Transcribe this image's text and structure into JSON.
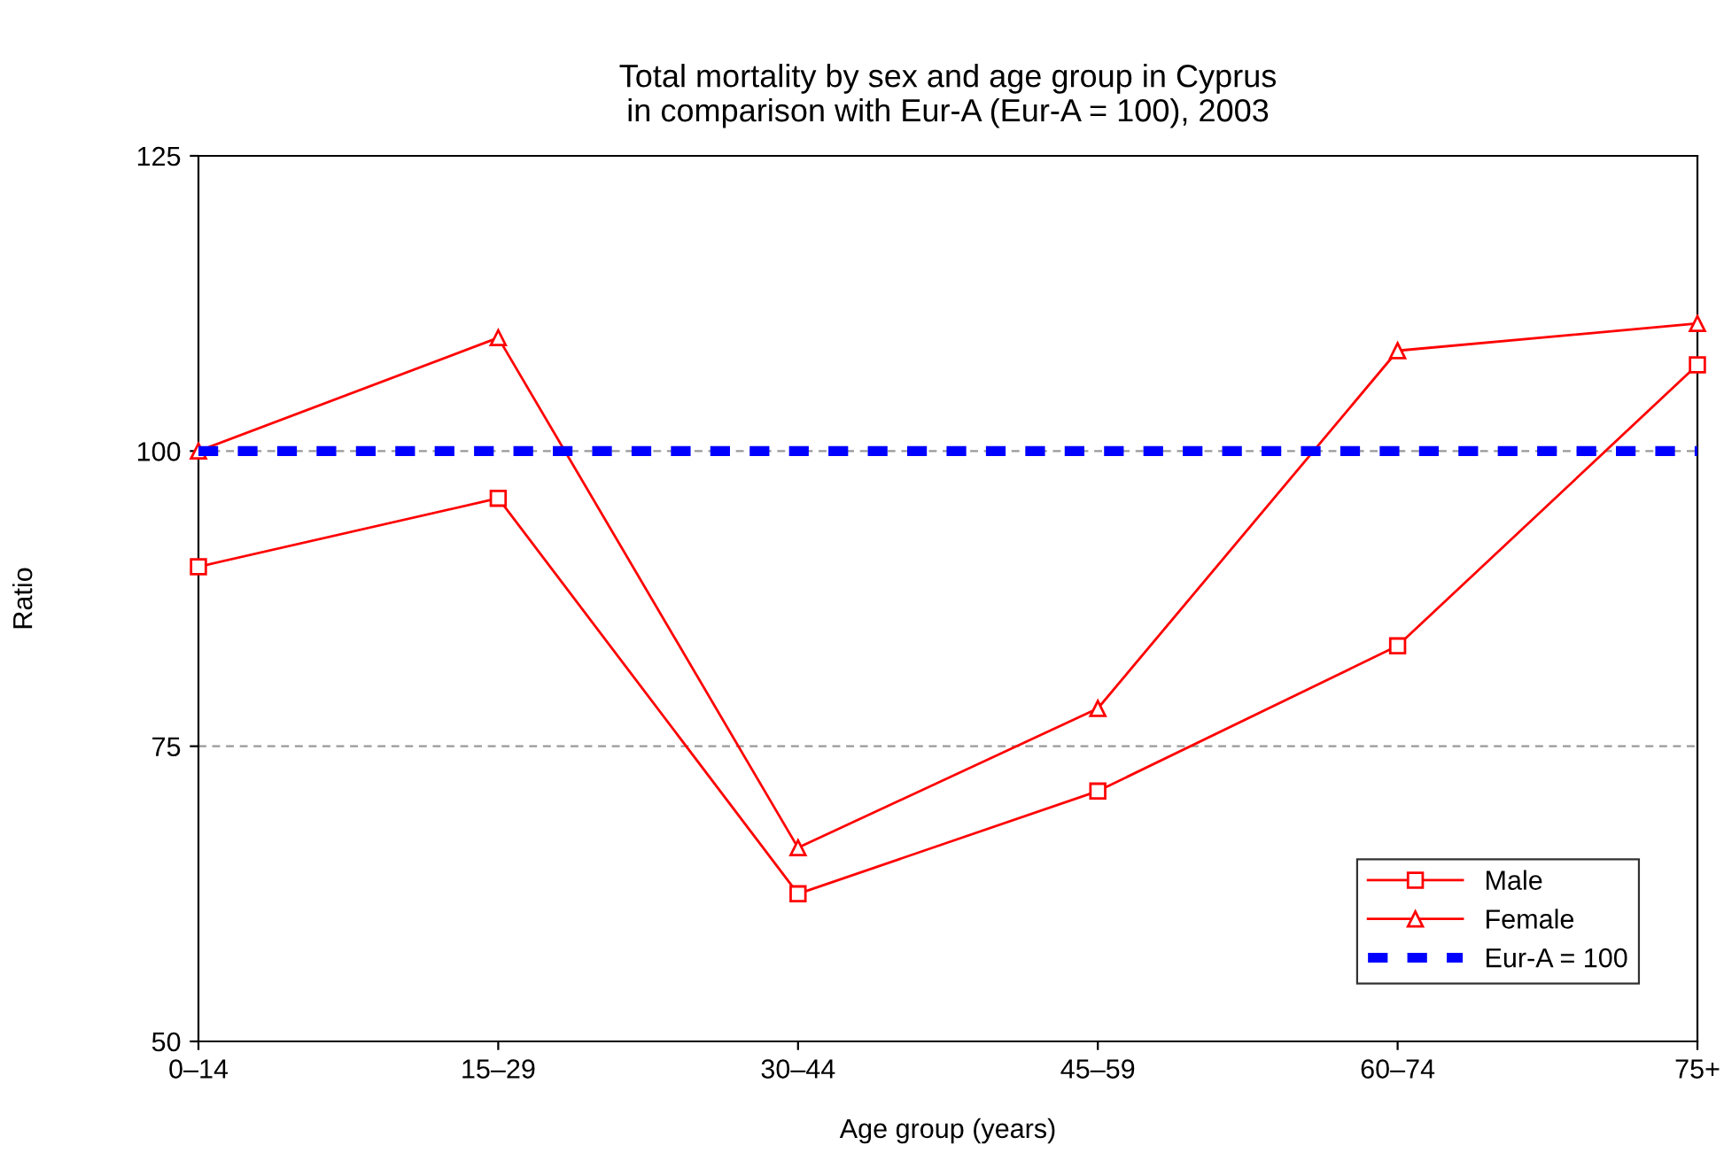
{
  "chart_data": {
    "type": "line",
    "title": "Total mortality by sex and age group in Cyprus\nin comparison with Eur-A (Eur-A = 100), 2003",
    "xlabel": "Age group (years)",
    "ylabel": "Ratio",
    "categories": [
      "0–14",
      "15–29",
      "30–44",
      "45–59",
      "60–74",
      "75+"
    ],
    "series": [
      {
        "name": "Male",
        "color": "#ff0000",
        "marker": "square",
        "line_style": "solid",
        "values": [
          90.2,
          96,
          62.5,
          71.2,
          83.5,
          107.3
        ]
      },
      {
        "name": "Female",
        "color": "#ff0000",
        "marker": "triangle",
        "line_style": "solid",
        "values": [
          100,
          109.6,
          66.4,
          78.2,
          108.5,
          110.8
        ]
      },
      {
        "name": "Eur-A = 100",
        "color": "#0000ff",
        "marker": "none",
        "line_style": "dashed",
        "values": [
          100,
          100,
          100,
          100,
          100,
          100
        ]
      }
    ],
    "ylim": [
      50,
      125
    ],
    "yticks": [
      50,
      75,
      100,
      125
    ],
    "grid": "y",
    "legend": "bottom right"
  }
}
